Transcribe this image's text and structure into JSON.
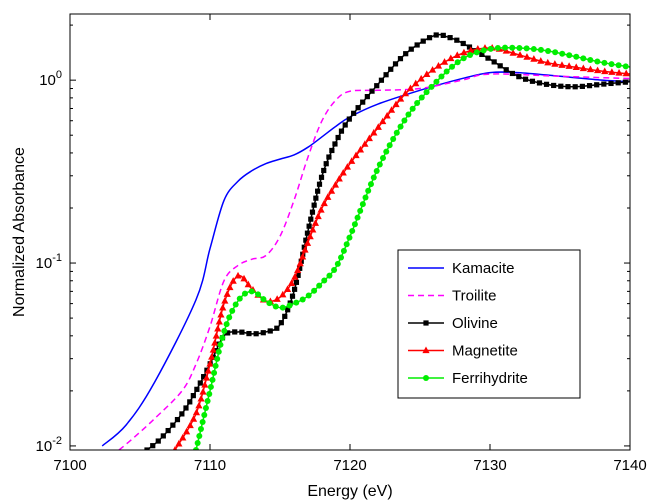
{
  "chart_data": {
    "type": "line",
    "title": "",
    "xlabel": "Energy (eV)",
    "ylabel": "Normalized Absorbance",
    "xlim": [
      7100,
      7140
    ],
    "ylim": [
      0.0095,
      2.3
    ],
    "yscale": "log",
    "grid": false,
    "legend_position": "lower-right",
    "x_ticks": [
      7100,
      7110,
      7120,
      7130,
      7140
    ],
    "x_tick_labels": [
      "7100",
      "7110",
      "7120",
      "7130",
      "7140"
    ],
    "y_ticks": [
      0.01,
      0.1,
      1
    ],
    "y_tick_labels": [
      {
        "base": "10",
        "exp": "-2"
      },
      {
        "base": "10",
        "exp": "-1"
      },
      {
        "base": "10",
        "exp": "0"
      }
    ],
    "series": [
      {
        "name": "Kamacite",
        "color": "#0000ff",
        "dash": "solid",
        "marker": "none",
        "x": [
          7102.3,
          7104,
          7106,
          7109,
          7110,
          7111,
          7112,
          7113,
          7114,
          7115,
          7116,
          7117,
          7118,
          7119,
          7120,
          7122,
          7125,
          7128,
          7130,
          7132,
          7135,
          7138,
          7140
        ],
        "y": [
          0.01,
          0.013,
          0.022,
          0.063,
          0.12,
          0.22,
          0.28,
          0.32,
          0.35,
          0.37,
          0.39,
          0.43,
          0.49,
          0.56,
          0.63,
          0.74,
          0.88,
          1.02,
          1.1,
          1.1,
          1.05,
          1.0,
          0.98
        ]
      },
      {
        "name": "Troilite",
        "color": "#ff00ff",
        "dash": "dashed",
        "marker": "none",
        "x": [
          7103.5,
          7104.5,
          7106,
          7108,
          7109,
          7110,
          7111,
          7112,
          7113,
          7114,
          7115,
          7116,
          7117,
          7118,
          7119,
          7120,
          7122,
          7125,
          7128,
          7130,
          7135,
          7140
        ],
        "y": [
          0.0095,
          0.011,
          0.014,
          0.02,
          0.028,
          0.045,
          0.08,
          0.097,
          0.105,
          0.11,
          0.14,
          0.22,
          0.38,
          0.6,
          0.78,
          0.87,
          0.88,
          0.9,
          1.0,
          1.08,
          1.05,
          1.02
        ]
      },
      {
        "name": "Olivine",
        "color": "#000000",
        "dash": "solid",
        "marker": "square",
        "x": [
          7105.5,
          7106.5,
          7108,
          7109,
          7110,
          7111,
          7112,
          7113,
          7114,
          7115,
          7116,
          7117,
          7118,
          7119,
          7120,
          7122,
          7124,
          7126,
          7127,
          7128,
          7130,
          7132,
          7134,
          7136,
          7138,
          7140
        ],
        "y": [
          0.0095,
          0.011,
          0.015,
          0.02,
          0.028,
          0.04,
          0.042,
          0.041,
          0.042,
          0.046,
          0.07,
          0.15,
          0.3,
          0.46,
          0.62,
          0.95,
          1.4,
          1.75,
          1.72,
          1.6,
          1.3,
          1.05,
          0.95,
          0.92,
          0.95,
          0.98
        ]
      },
      {
        "name": "Magnetite",
        "color": "#ff0000",
        "dash": "solid",
        "marker": "triangle",
        "x": [
          7107.5,
          7109,
          7110,
          7111,
          7112,
          7113,
          7114,
          7115,
          7116,
          7117,
          7118,
          7119,
          7120,
          7122,
          7124,
          7126,
          7128,
          7130,
          7132,
          7134,
          7136,
          7138,
          7140
        ],
        "y": [
          0.0095,
          0.015,
          0.028,
          0.06,
          0.085,
          0.072,
          0.062,
          0.065,
          0.082,
          0.13,
          0.2,
          0.27,
          0.35,
          0.55,
          0.85,
          1.15,
          1.4,
          1.5,
          1.38,
          1.25,
          1.18,
          1.12,
          1.08
        ]
      },
      {
        "name": "Ferrihydrite",
        "color": "#00ee00",
        "dash": "solid",
        "marker": "circle",
        "x": [
          7109,
          7110,
          7111,
          7112,
          7113,
          7114,
          7115,
          7116,
          7117,
          7118,
          7119,
          7120,
          7122,
          7124,
          7126,
          7128,
          7130,
          7132,
          7134,
          7136,
          7138,
          7140
        ],
        "y": [
          0.0095,
          0.02,
          0.042,
          0.062,
          0.07,
          0.062,
          0.057,
          0.06,
          0.066,
          0.078,
          0.095,
          0.14,
          0.33,
          0.62,
          0.95,
          1.3,
          1.48,
          1.5,
          1.45,
          1.35,
          1.25,
          1.18
        ]
      }
    ]
  }
}
